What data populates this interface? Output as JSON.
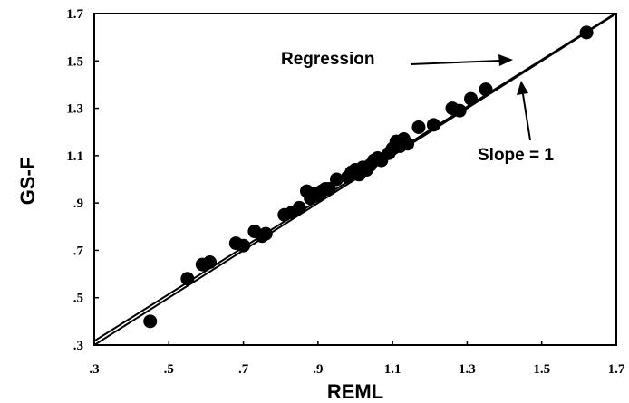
{
  "chart_data": {
    "type": "scatter",
    "xlabel": "REML",
    "ylabel": "GS-F",
    "xlim": [
      0.3,
      1.7
    ],
    "ylim": [
      0.3,
      1.7
    ],
    "x_ticks": [
      ".3",
      ".5",
      ".7",
      ".9",
      "1.1",
      "1.3",
      "1.5",
      "1.7"
    ],
    "y_ticks": [
      ".3",
      ".5",
      ".7",
      ".9",
      "1.1",
      "1.3",
      "1.5",
      "1.7"
    ],
    "grid": false,
    "series": [
      {
        "name": "",
        "x": [
          0.45,
          0.55,
          0.59,
          0.61,
          0.68,
          0.7,
          0.73,
          0.75,
          0.76,
          0.81,
          0.83,
          0.85,
          0.87,
          0.88,
          0.89,
          0.9,
          0.91,
          0.92,
          0.93,
          0.95,
          0.98,
          0.99,
          1.0,
          1.01,
          1.02,
          1.03,
          1.04,
          1.05,
          1.06,
          1.07,
          1.09,
          1.1,
          1.11,
          1.12,
          1.13,
          1.14,
          1.17,
          1.21,
          1.26,
          1.28,
          1.31,
          1.35,
          1.62
        ],
        "y": [
          0.4,
          0.58,
          0.64,
          0.65,
          0.73,
          0.72,
          0.78,
          0.76,
          0.77,
          0.85,
          0.86,
          0.88,
          0.95,
          0.92,
          0.94,
          0.93,
          0.95,
          0.96,
          0.96,
          1.0,
          1.01,
          1.03,
          1.04,
          1.02,
          1.05,
          1.04,
          1.06,
          1.08,
          1.09,
          1.08,
          1.11,
          1.13,
          1.16,
          1.14,
          1.17,
          1.15,
          1.22,
          1.23,
          1.3,
          1.29,
          1.34,
          1.38,
          1.62
        ]
      }
    ],
    "lines": [
      {
        "name": "Regression",
        "intercept": 0.02,
        "slope": 0.99
      },
      {
        "name": "Slope = 1",
        "intercept": 0.0,
        "slope": 1.0
      }
    ],
    "annotations": [
      {
        "text": "Regression",
        "points_to": "Regression"
      },
      {
        "text": "Slope = 1",
        "points_to": "Slope = 1"
      }
    ]
  }
}
